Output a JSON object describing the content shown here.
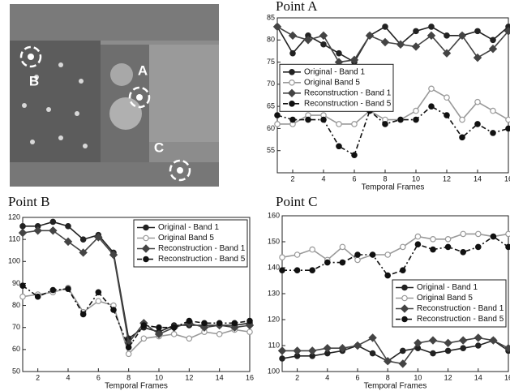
{
  "image_labels": [
    "A",
    "B",
    "C"
  ],
  "chart_data": [
    {
      "type": "line",
      "title": "Point A",
      "xlabel": "Temporal Frames",
      "legend": "center-left",
      "x": [
        1,
        2,
        3,
        4,
        5,
        6,
        7,
        8,
        9,
        10,
        11,
        12,
        13,
        14,
        15,
        16
      ],
      "xlim": [
        1,
        16
      ],
      "xticks": [
        2,
        4,
        6,
        8,
        10,
        12,
        14,
        16
      ],
      "ylim": [
        50,
        85
      ],
      "yticks": [
        55,
        60,
        65,
        70,
        75,
        80,
        85
      ],
      "series": [
        {
          "name": "Original - Band 1",
          "color": "#222222",
          "marker": "circle",
          "line_style": "solid",
          "values": [
            83,
            77,
            81,
            79,
            77,
            75,
            81,
            83,
            79,
            82,
            83,
            81,
            81,
            82,
            80,
            83
          ]
        },
        {
          "name": "Original Band 5",
          "color": "#999999",
          "marker": "open-circle",
          "line_style": "solid",
          "values": [
            61,
            61,
            63,
            63,
            61,
            61,
            64,
            62,
            62,
            64,
            69,
            67,
            62,
            66,
            64,
            62
          ]
        },
        {
          "name": "Reconstruction - Band 1",
          "color": "#444444",
          "marker": "diamond",
          "line_style": "solid",
          "values": [
            83,
            81,
            80,
            81,
            75,
            75.5,
            81,
            79.5,
            79,
            78.5,
            81,
            77,
            81,
            76,
            78,
            82
          ]
        },
        {
          "name": "Reconstruction - Band 5",
          "color": "#111111",
          "marker": "circle",
          "line_style": "dash-dot",
          "values": [
            63,
            62,
            62,
            62,
            56,
            54,
            64,
            61,
            62,
            62,
            65,
            63,
            58,
            61,
            59,
            60
          ]
        }
      ]
    },
    {
      "type": "line",
      "title": "Point B",
      "xlabel": "Temporal Frames",
      "legend": "upper-right",
      "x": [
        1,
        2,
        3,
        4,
        5,
        6,
        7,
        8,
        9,
        10,
        11,
        12,
        13,
        14,
        15,
        16
      ],
      "xlim": [
        1,
        16
      ],
      "xticks": [
        2,
        4,
        6,
        8,
        10,
        12,
        14,
        16
      ],
      "ylim": [
        50,
        120
      ],
      "yticks": [
        50,
        60,
        70,
        80,
        90,
        100,
        110,
        120
      ],
      "series": [
        {
          "name": "Original - Band 1",
          "color": "#222222",
          "marker": "circle",
          "line_style": "solid",
          "values": [
            116,
            116,
            118,
            116,
            110,
            112,
            104,
            65,
            70,
            68,
            71,
            71,
            71,
            71,
            71,
            72
          ]
        },
        {
          "name": "Original Band 5",
          "color": "#999999",
          "marker": "open-circle",
          "line_style": "solid",
          "values": [
            84,
            85,
            86,
            88,
            77,
            82,
            80,
            58,
            65,
            66,
            67,
            65,
            68,
            67,
            69,
            68
          ]
        },
        {
          "name": "Reconstruction - Band 1",
          "color": "#444444",
          "marker": "diamond",
          "line_style": "solid",
          "values": [
            113,
            114,
            114,
            109,
            104,
            111,
            103,
            63,
            72,
            67,
            70,
            72,
            70,
            71,
            70,
            71
          ]
        },
        {
          "name": "Reconstruction - Band 5",
          "color": "#111111",
          "marker": "circle",
          "line_style": "dash-dot",
          "values": [
            89,
            84,
            87,
            87.5,
            76,
            86,
            78,
            61,
            71,
            70,
            70,
            73,
            72,
            72,
            72,
            73
          ]
        }
      ]
    },
    {
      "type": "line",
      "title": "Point C",
      "xlabel": "Temporal Frames",
      "legend": "lower-right",
      "x": [
        1,
        2,
        3,
        4,
        5,
        6,
        7,
        8,
        9,
        10,
        11,
        12,
        13,
        14,
        15,
        16
      ],
      "xlim": [
        1,
        16
      ],
      "xticks": [
        2,
        4,
        6,
        8,
        10,
        12,
        14,
        16
      ],
      "ylim": [
        100,
        160
      ],
      "yticks": [
        100,
        110,
        120,
        130,
        140,
        150,
        160
      ],
      "series": [
        {
          "name": "Original - Band 1",
          "color": "#222222",
          "marker": "circle",
          "line_style": "solid",
          "values": [
            105,
            106,
            106,
            107,
            108,
            110,
            107,
            104,
            108,
            109,
            107,
            108,
            109,
            110,
            112,
            108
          ]
        },
        {
          "name": "Original Band 5",
          "color": "#999999",
          "marker": "open-circle",
          "line_style": "solid",
          "values": [
            144,
            145,
            147,
            143,
            148,
            143,
            145,
            145,
            148,
            152,
            151,
            151,
            153,
            153,
            152,
            153
          ]
        },
        {
          "name": "Reconstruction - Band 1",
          "color": "#444444",
          "marker": "diamond",
          "line_style": "solid",
          "values": [
            108,
            108,
            108,
            109,
            109,
            110,
            113,
            104,
            103,
            111,
            112,
            111,
            112,
            113,
            112,
            109
          ]
        },
        {
          "name": "Reconstruction - Band 5",
          "color": "#111111",
          "marker": "circle",
          "line_style": "dash-dot",
          "values": [
            139,
            139,
            139,
            142,
            142,
            145,
            145,
            137,
            139,
            149,
            147,
            148,
            146,
            148,
            152,
            148
          ]
        }
      ]
    }
  ]
}
